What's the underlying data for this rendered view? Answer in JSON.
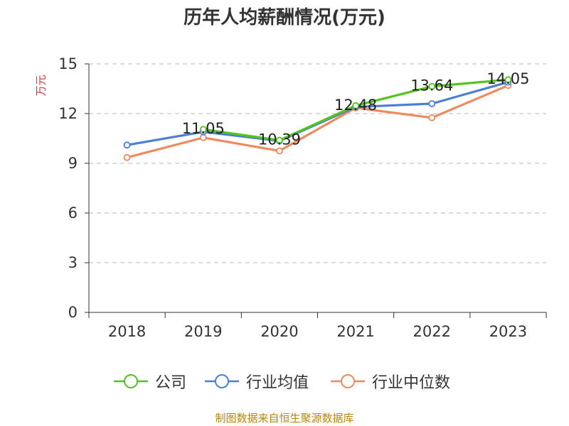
{
  "title": "历年人均薪酬情况(万元)",
  "footer": "制图数据来自恒生聚源数据库",
  "chart_data": {
    "type": "line",
    "title": "历年人均薪酬情况(万元)",
    "ylabel": "万元",
    "xlabel": "",
    "categories": [
      "2018",
      "2019",
      "2020",
      "2021",
      "2022",
      "2023"
    ],
    "ylim": [
      0,
      15
    ],
    "yticks": [
      "0",
      "3",
      "6",
      "9",
      "12",
      "15"
    ],
    "grid": true,
    "legend_position": "bottom",
    "series": [
      {
        "name": "公司",
        "color": "#52c41a",
        "values": [
          null,
          11.05,
          10.39,
          12.48,
          13.64,
          14.05
        ],
        "labels": [
          "",
          "11.05",
          "10.39",
          "12.48",
          "13.64",
          "14.05"
        ]
      },
      {
        "name": "行业均值",
        "color": "#4a7fd6",
        "values": [
          10.1,
          10.9,
          10.35,
          12.4,
          12.6,
          13.9
        ]
      },
      {
        "name": "行业中位数",
        "color": "#f08a5d",
        "values": [
          9.35,
          10.55,
          9.75,
          12.35,
          11.75,
          13.7
        ]
      }
    ]
  }
}
